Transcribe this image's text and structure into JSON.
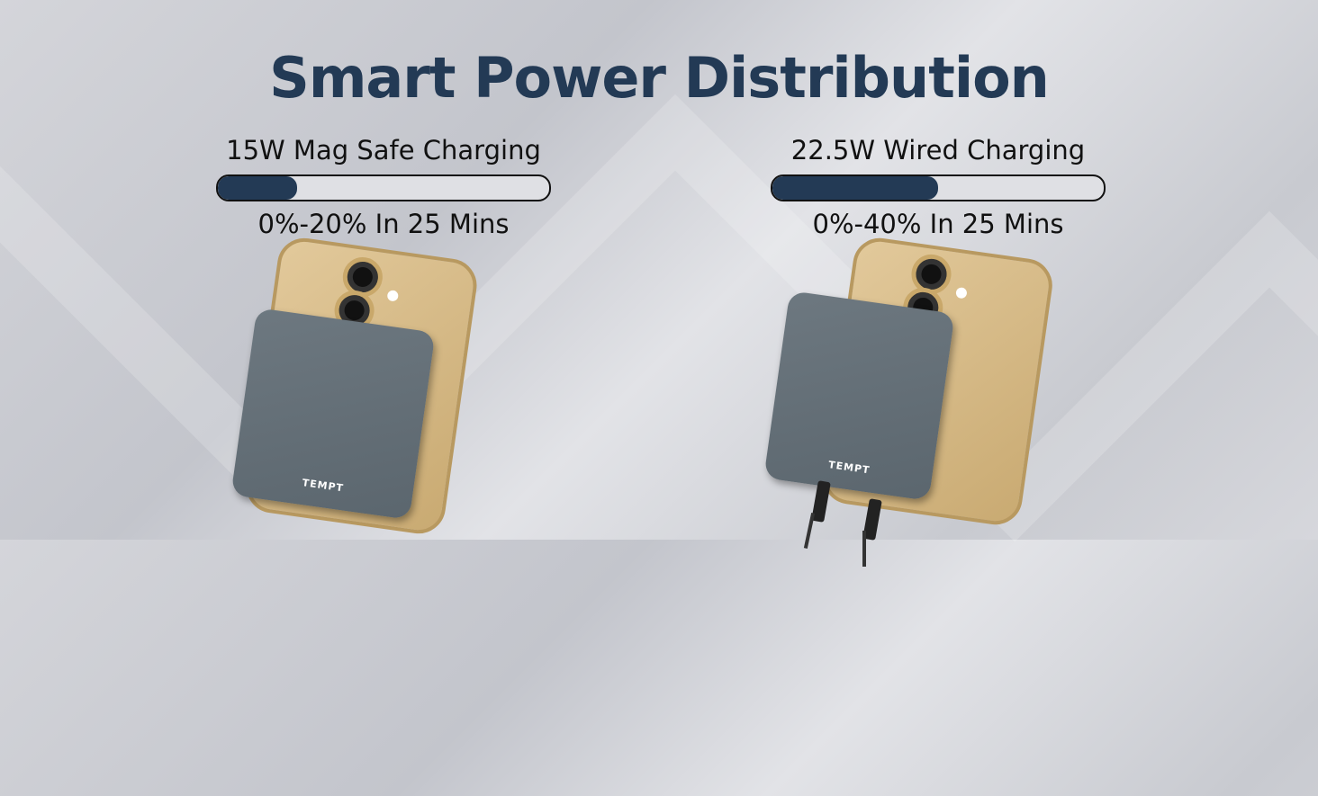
{
  "title": "Smart Power Distribution",
  "left": {
    "label": "15W Mag Safe Charging",
    "progress_fraction": 0.24,
    "subtitle": "0%-20% In 25 Mins",
    "brand": "TEMPT"
  },
  "right": {
    "label": "22.5W Wired Charging",
    "progress_fraction": 0.5,
    "subtitle": "0%-40% In 25 Mins",
    "brand": "TEMPT"
  },
  "colors": {
    "accent": "#233a55",
    "phone": "#d9bd8a",
    "powerbank": "#646f77"
  }
}
